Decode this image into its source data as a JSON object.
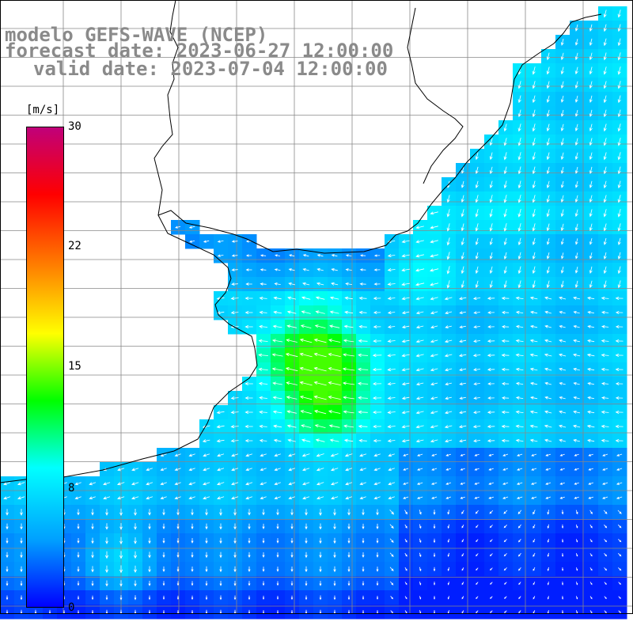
{
  "title": {
    "line1": "modelo GEFS-WAVE (NCEP)",
    "line2": "forecast date: 2023-06-27 12:00:00",
    "line3": "valid date: 2023-07-04 12:00:00"
  },
  "colorbar": {
    "unit": "[m/s]",
    "ticks": [
      "30",
      "22",
      "15",
      "8",
      "0"
    ],
    "tick_values": [
      30,
      22,
      15,
      8,
      0
    ],
    "range": [
      0,
      30
    ],
    "colors": [
      "#0000ff",
      "#00a0ff",
      "#00ffff",
      "#00ff00",
      "#ffff00",
      "#ff8000",
      "#ff0000",
      "#c0007a"
    ]
  },
  "map": {
    "land_color": "#ffffff",
    "grid_color": "#888888",
    "coastline_color": "#000000",
    "arrow_color": "#ffffff"
  }
}
